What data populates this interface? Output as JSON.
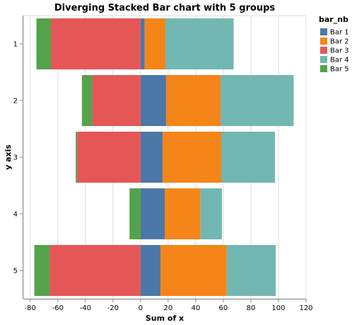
{
  "chart_data": {
    "type": "bar",
    "orientation": "horizontal",
    "stacking": "diverging",
    "title": "Diverging Stacked Bar chart with 5 groups",
    "xlabel": "Sum of x",
    "ylabel": "y axis",
    "xlim": [
      -85,
      120
    ],
    "xticks": [
      -80,
      -60,
      -40,
      -20,
      0,
      20,
      40,
      60,
      80,
      100,
      120
    ],
    "categories": [
      "1",
      "2",
      "3",
      "4",
      "5"
    ],
    "grid": true,
    "legend": {
      "title": "bar_nb",
      "placement": "right"
    },
    "series": [
      {
        "name": "Bar 1",
        "color": "#4c78a8",
        "values": [
          3,
          18.5,
          16,
          17.5,
          14.5
        ]
      },
      {
        "name": "Bar 2",
        "color": "#f58518",
        "values": [
          15,
          39.5,
          42.5,
          26,
          48
        ]
      },
      {
        "name": "Bar 3",
        "color": "#e45756",
        "values": [
          -65,
          -35,
          -46,
          0,
          -66
        ]
      },
      {
        "name": "Bar 4",
        "color": "#72b7b2",
        "values": [
          49.5,
          53,
          39,
          15.5,
          35.5
        ]
      },
      {
        "name": "Bar 5",
        "color": "#54a24b",
        "values": [
          -10.5,
          -7.5,
          -1,
          -8,
          -11
        ]
      }
    ]
  }
}
